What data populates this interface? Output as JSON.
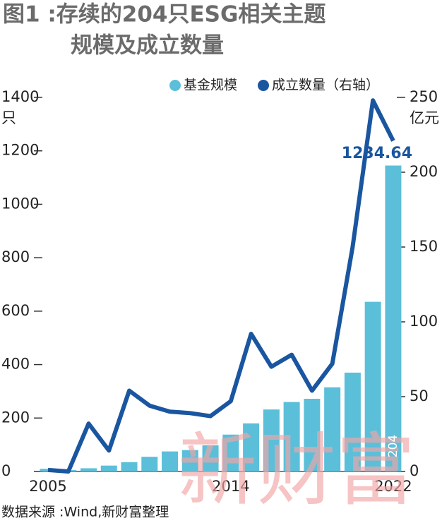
{
  "chart_data": {
    "type": "bar",
    "title": [
      "图1 :存续的204只ESG相关主题",
      "规模及成立数量"
    ],
    "categories": [
      "2005",
      null,
      null,
      null,
      null,
      null,
      null,
      null,
      null,
      "2014",
      null,
      null,
      null,
      null,
      null,
      null,
      null,
      "2022"
    ],
    "series": [
      {
        "name": "基金规模",
        "type": "bar",
        "color": "#5bbfd9",
        "values": [
          10,
          5,
          12,
          22,
          35,
          55,
          75,
          80,
          98,
          138,
          180,
          232,
          260,
          272,
          315,
          370,
          635,
          1145
        ]
      },
      {
        "name": "成立数量（右轴）",
        "type": "line",
        "axis": "y2",
        "color": "#1a56a0",
        "values": [
          1,
          0,
          32,
          14,
          54,
          44,
          40,
          39,
          37,
          47,
          92,
          70,
          78,
          54,
          72,
          150,
          248,
          221
        ]
      }
    ],
    "ylim": [
      0,
      1400
    ],
    "yticks": [
      0,
      200,
      400,
      600,
      800,
      1000,
      1200,
      1400
    ],
    "y2lim": [
      0,
      250
    ],
    "y2ticks": [
      0,
      50,
      100,
      150,
      200,
      250
    ],
    "ylabel": "只",
    "y2label": "亿元",
    "annotations": [
      "1234.64",
      "204"
    ],
    "watermark": "新财富",
    "source": "数据来源 :Wind,新财富整理"
  }
}
